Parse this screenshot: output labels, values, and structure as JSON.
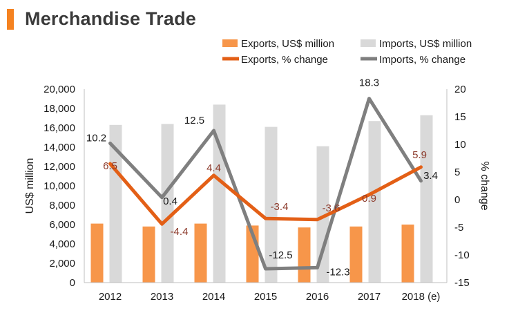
{
  "page": {
    "title": "Merchandise Trade"
  },
  "colors": {
    "accent": "#f58220",
    "exports_bar": "#f7964a",
    "imports_bar": "#d9d9d9",
    "exports_line": "#e35f16",
    "imports_line": "#7f7f7f",
    "exports_label": "#8c3a2b"
  },
  "chart_data": {
    "type": "bar",
    "categories": [
      "2012",
      "2013",
      "2014",
      "2015",
      "2016",
      "2017",
      "2018 (e)"
    ],
    "series": [
      {
        "name": "Exports, US$ million",
        "type": "bar",
        "axis": "left",
        "values": [
          6100,
          5800,
          6100,
          5900,
          5700,
          5800,
          6000
        ]
      },
      {
        "name": "Imports, US$ million",
        "type": "bar",
        "axis": "left",
        "values": [
          16300,
          16400,
          18400,
          16100,
          14100,
          16700,
          17300
        ]
      },
      {
        "name": "Exports, % change",
        "type": "line",
        "axis": "right",
        "values": [
          6.5,
          -4.4,
          4.4,
          -3.4,
          -3.6,
          0.9,
          5.9
        ],
        "labels": [
          "6.5",
          "-4.4",
          "4.4",
          "-3.4",
          "-3.6",
          "0.9",
          "5.9"
        ]
      },
      {
        "name": "Imports, % change",
        "type": "line",
        "axis": "right",
        "values": [
          10.2,
          0.4,
          12.5,
          -12.5,
          -12.3,
          18.3,
          3.4
        ],
        "labels": [
          "10.2",
          "0.4",
          "12.5",
          "-12.5",
          "-12.3",
          "18.3",
          "3.4"
        ]
      }
    ],
    "ylabel": "US$ million",
    "ylabel_right": "% change",
    "ylim": [
      0,
      20000
    ],
    "yticks": [
      "0",
      "2,000",
      "4,000",
      "6,000",
      "8,000",
      "10,000",
      "12,000",
      "14,000",
      "16,000",
      "18,000",
      "20,000"
    ],
    "ylim_right": [
      -15,
      20
    ],
    "yticks_right": [
      "-15",
      "-10",
      "-5",
      "0",
      "5",
      "10",
      "15",
      "20"
    ],
    "legend_position": "top-right",
    "grid": false
  }
}
